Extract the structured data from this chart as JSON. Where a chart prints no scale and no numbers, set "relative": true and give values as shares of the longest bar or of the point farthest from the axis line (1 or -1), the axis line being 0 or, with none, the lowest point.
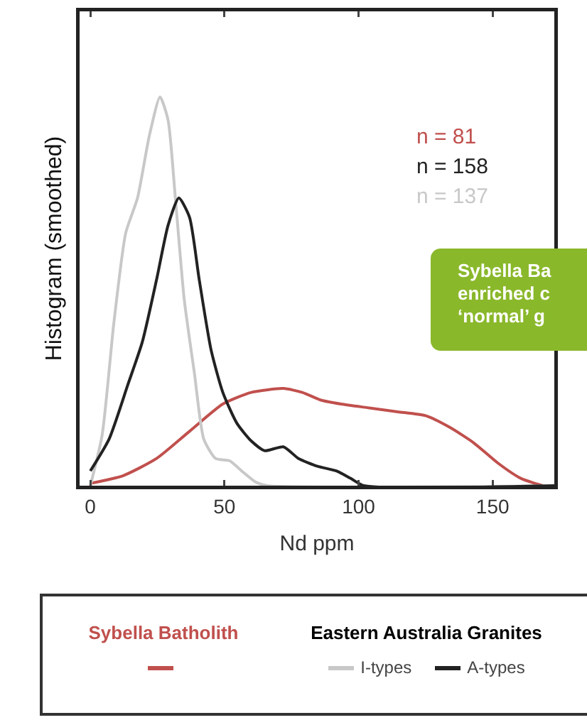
{
  "chart_data": {
    "type": "line",
    "relative": true,
    "xlabel": "Nd ppm",
    "ylabel": "Histogram (smoothed)",
    "legend_title": "Eastern Australia Granites",
    "legend": "bottom",
    "grid": false,
    "xlim": [
      -4,
      173
    ],
    "xticks": [
      0,
      50,
      100,
      150
    ],
    "series": [
      {
        "name": "Sybella Batholith",
        "color": "#c0504d",
        "x": [
          0,
          12.3,
          24.7,
          37,
          49.4,
          60,
          72,
          79,
          86,
          93.5,
          104,
          114.6,
          125,
          134,
          143,
          152,
          160.5,
          169,
          173
        ],
        "values": [
          0.006,
          0.026,
          0.07,
          0.14,
          0.21,
          0.24,
          0.25,
          0.24,
          0.22,
          0.21,
          0.2,
          0.19,
          0.18,
          0.15,
          0.11,
          0.058,
          0.019,
          0,
          0
        ]
      },
      {
        "name": "I-types",
        "color": "#c8c8c8",
        "x": [
          0,
          4.4,
          8.8,
          13.2,
          17.6,
          22,
          26,
          29,
          31.7,
          35,
          38.8,
          42.3,
          46.7,
          52,
          56.4,
          61.7,
          66,
          173
        ],
        "values": [
          0,
          0.13,
          0.42,
          0.65,
          0.74,
          0.9,
          1,
          0.94,
          0.74,
          0.48,
          0.29,
          0.12,
          0.07,
          0.064,
          0.038,
          0.009,
          0,
          0
        ]
      },
      {
        "name": "A-types",
        "color": "#222222",
        "x": [
          0,
          7,
          14,
          19.4,
          24.7,
          29,
          33,
          37,
          40.6,
          45,
          49.4,
          54.7,
          60,
          65,
          72,
          77.6,
          84.7,
          91.7,
          97,
          102,
          173
        ],
        "values": [
          0.038,
          0.12,
          0.26,
          0.37,
          0.53,
          0.67,
          0.74,
          0.69,
          0.53,
          0.35,
          0.24,
          0.16,
          0.115,
          0.09,
          0.1,
          0.07,
          0.05,
          0.038,
          0.019,
          0,
          0
        ]
      }
    ],
    "annotations": [
      "n = 81",
      "n = 158",
      "n = 137",
      "Sybella Ba\nenriched c\n‘normal’ g"
    ]
  }
}
